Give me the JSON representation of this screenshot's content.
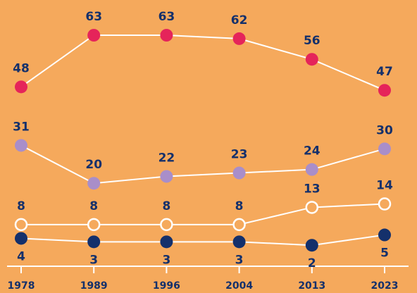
{
  "chart_data": {
    "type": "line",
    "categories": [
      "1978",
      "1989",
      "1996",
      "2004",
      "2013",
      "2023"
    ],
    "line_color": "#ffffff",
    "series": [
      {
        "color": "#e5245a",
        "values": [
          48,
          63,
          63,
          62,
          56,
          47
        ]
      },
      {
        "color": "#a98ec9",
        "values": [
          31,
          20,
          22,
          23,
          24,
          30
        ]
      },
      {
        "color": "#f5a95c",
        "marker": "hollow",
        "values": [
          8,
          8,
          8,
          8,
          13,
          14
        ]
      },
      {
        "color": "#14306b",
        "values": [
          4,
          3,
          3,
          3,
          2,
          5
        ]
      }
    ]
  }
}
